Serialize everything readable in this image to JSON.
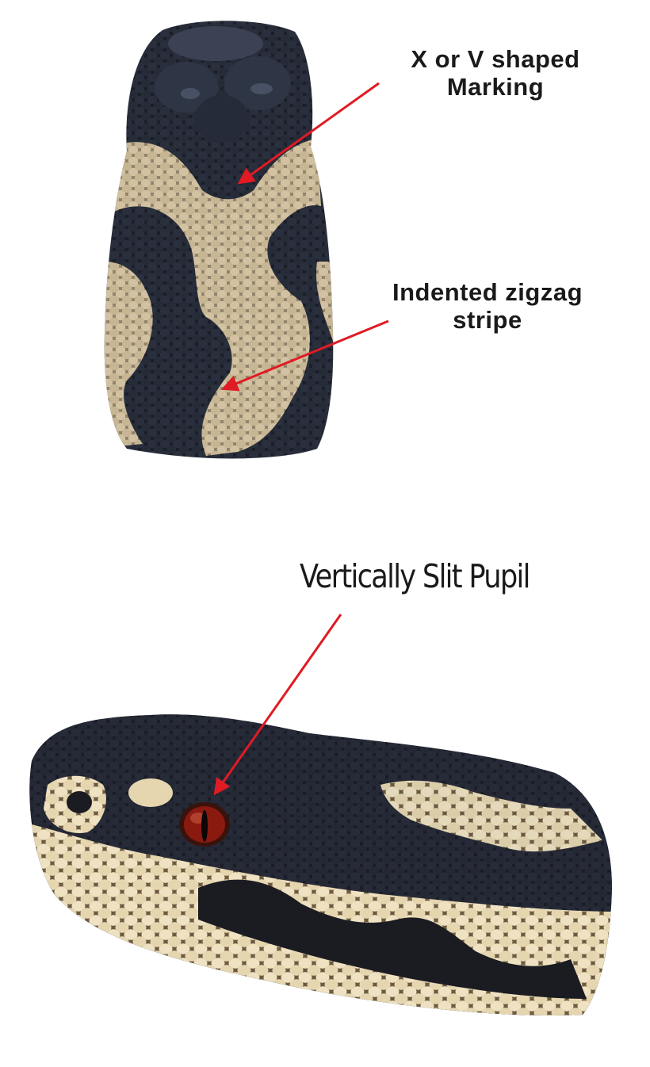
{
  "annotations": {
    "x_marking": {
      "line1": "X or V shaped",
      "line2": "Marking"
    },
    "zigzag": {
      "line1": "Indented zigzag",
      "line2": "stripe"
    },
    "pupil": {
      "text": "Vertically Slit Pupil"
    }
  },
  "colors": {
    "arrow": "#e01b24",
    "background": "#ffffff",
    "scale_dark": "#161a24",
    "scale_light": "#c9b89a",
    "eye": "#8a1a10"
  }
}
